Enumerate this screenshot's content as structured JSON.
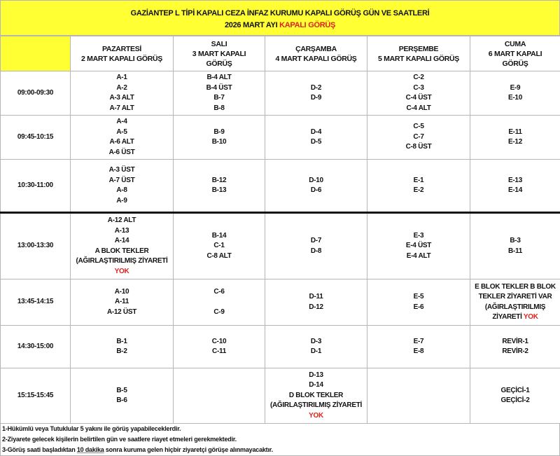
{
  "title": {
    "line1": "GAZİANTEP L TİPİ KAPALI CEZA İNFAZ KURUMU KAPALI GÖRÜŞ GÜN VE SAATLERİ",
    "line2_prefix": "2026 MART  AYI ",
    "line2_red": "KAPALI  GÖRÜŞ"
  },
  "colors": {
    "header_yellow": "#ffff33",
    "accent_red": "#e0201b",
    "border": "#b5b5b5"
  },
  "days": [
    [
      "PAZARTESİ",
      "2 MART KAPALI GÖRÜŞ"
    ],
    [
      "SALI",
      "3 MART KAPALI",
      "GÖRÜŞ"
    ],
    [
      "ÇARŞAMBA",
      "4 MART KAPALI GÖRÜŞ"
    ],
    [
      "PERŞEMBE",
      "5 MART KAPALI GÖRÜŞ"
    ],
    [
      "CUMA",
      "6 MART KAPALI",
      "GÖRÜŞ"
    ]
  ],
  "rows": [
    {
      "time": "09:00-09:30",
      "h": 62,
      "cells": [
        [
          "A-1",
          "A-2",
          "A-3 ALT",
          "A-7 ALT"
        ],
        [
          "B-4 ALT",
          "B-4 ÜST",
          "B-7",
          "B-8"
        ],
        [
          "D-2",
          "D-9"
        ],
        [
          "C-2",
          "C-3",
          "C-4 ÜST",
          "C-4 ALT"
        ],
        [
          "E-9",
          "E-10"
        ]
      ]
    },
    {
      "time": "09:45-10:15",
      "h": 62,
      "cells": [
        [
          "A-4",
          "A-5",
          "A-6 ALT",
          "A-6 ÜST"
        ],
        [
          "B-9",
          "B-10"
        ],
        [
          "D-4",
          "D-5"
        ],
        [
          "C-5",
          "C-7",
          "C-8 ÜST"
        ],
        [
          "E-11",
          "E-12"
        ]
      ]
    },
    {
      "time": "10:30-11:00",
      "h": 74,
      "cells": [
        [
          "A-3 ÜST",
          "A-7 ÜST",
          "A-8",
          "A-9"
        ],
        [
          "B-12",
          "B-13"
        ],
        [
          "D-10",
          "D-6"
        ],
        [
          "E-1",
          "E-2"
        ],
        [
          "E-13",
          "E-14"
        ]
      ]
    },
    {
      "time": "13:00-13:30",
      "h": 93,
      "thick": true,
      "cells": [
        [
          "A-12 ALT",
          "A-13",
          "A-14",
          "A BLOK TEKLER",
          "(AĞIRLAŞTIRILMIŞ  ZİYARETİ",
          {
            "t": "",
            "r": "YOK"
          }
        ],
        [
          "B-14",
          "C-1",
          "C-8 ALT"
        ],
        [
          "D-7",
          "D-8"
        ],
        [
          "E-3",
          "E-4 ÜST",
          "E-4 ALT"
        ],
        [
          "B-3",
          "B-11"
        ]
      ]
    },
    {
      "time": "13:45-14:15",
      "h": 65,
      "cells": [
        [
          "A-10",
          "A-11",
          "A-12 ÜST"
        ],
        [
          "C-6",
          "",
          "C-9"
        ],
        [
          "D-11",
          "D-12"
        ],
        [
          "E-5",
          "E-6"
        ],
        [
          "E BLOK TEKLER B BLOK",
          "TEKLER ZİYARETİ VAR",
          "(AĞIRLAŞTIRILMIŞ",
          {
            "t": "ZİYARETİ ",
            "r": "YOK"
          }
        ]
      ]
    },
    {
      "time": "14:30-15:00",
      "h": 60,
      "cells": [
        [
          "B-1",
          "B-2"
        ],
        [
          "C-10",
          "C-11"
        ],
        [
          "D-3",
          "D-1"
        ],
        [
          "E-7",
          "E-8"
        ],
        [
          "REVİR-1",
          "REVİR-2"
        ]
      ]
    },
    {
      "time": "15:15-15:45",
      "h": 78,
      "cells": [
        [
          "B-5",
          "B-6"
        ],
        [],
        [
          "D-13",
          "D-14",
          "D BLOK TEKLER",
          "(AĞIRLAŞTIRILMIŞ  ZİYARETİ",
          {
            "t": "",
            "r": "YOK"
          }
        ],
        [],
        [
          "GEÇİCİ-1",
          "GEÇİCİ-2"
        ]
      ]
    }
  ],
  "notes": {
    "n1": "1-Hükümlü veya Tutuklular 5 yakını  ile görüş yapabileceklerdir.",
    "n2": "2-Ziyarete gelecek kişilerin belirtilen gün ve saatlere riayet etmeleri gerekmektedir.",
    "n3_prefix": "3-Görüş saati başladıktan ",
    "n3_underlined": "10 dakika",
    "n3_suffix": " sonra kuruma gelen hiçbir ziyaretçi görüşe alınmayacaktır."
  }
}
